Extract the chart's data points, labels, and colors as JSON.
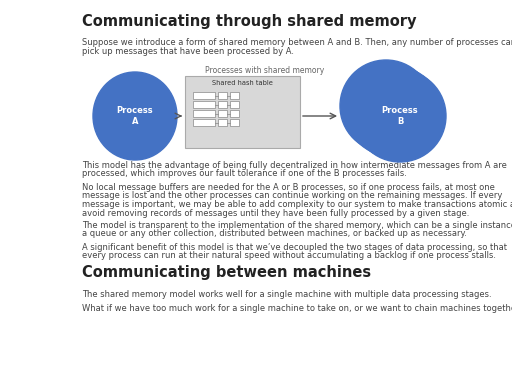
{
  "title": "Communicating through shared memory",
  "subtitle2": "Communicating between machines",
  "bg_color": "#ffffff",
  "text_color": "#444444",
  "blue_color": "#4472c4",
  "diagram_label": "Processes with shared memory",
  "process_a_label": "Process\nA",
  "process_b_label": "Process\nB",
  "hash_table_label": "Shared hash table",
  "para1_l1": "Suppose we introduce a form of shared memory between A and B. Then, any number of processes can",
  "para1_l2": "pick up messages that have been processed by A.",
  "para2_l1": "This model has the advantage of being fully decentralized in how intermediate messages from A are",
  "para2_l2": "processed, which improves our fault tolerance if one of the B processes fails.",
  "para3_l1": "No local message buffers are needed for the A or B processes, so if one process fails, at most one",
  "para3_l2": "message is lost and the other processes can continue working on the remaining messages. If every",
  "para3_l3": "message is important, we may be able to add complexity to our system to make transactions atomic and",
  "para3_l4": "avoid removing records of messages until they have been fully processed by a given stage.",
  "para4_l1": "The model is transparent to the implementation of the shared memory, which can be a single instance of",
  "para4_l2": "a queue or any other collection, distributed between machines, or backed up as necessary.",
  "para5_l1": "A significant benefit of this model is that we’ve decoupled the two stages of data processing, so that",
  "para5_l2": "every process can run at their natural speed without accumulating a backlog if one process stalls.",
  "para6": "The shared memory model works well for a single machine with multiple data processing stages.",
  "para7": "What if we have too much work for a single machine to take on, or we want to chain machines together to"
}
